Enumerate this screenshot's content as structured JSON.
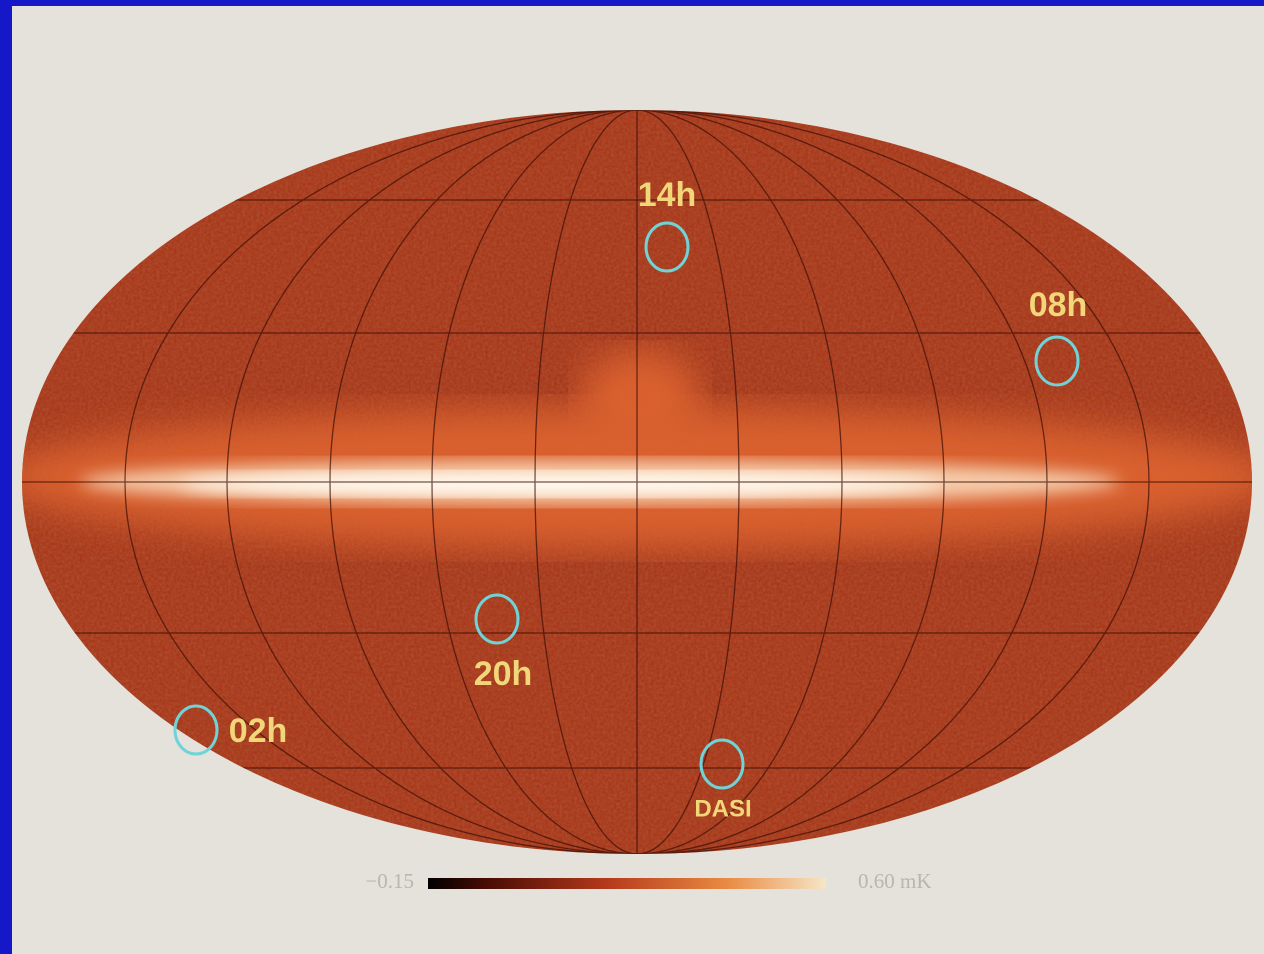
{
  "map": {
    "labels": [
      "14h",
      "08h",
      "20h",
      "02h",
      "DASI"
    ]
  },
  "colorbar": {
    "min_label": "−0.15",
    "max_label": "0.60 mK"
  }
}
